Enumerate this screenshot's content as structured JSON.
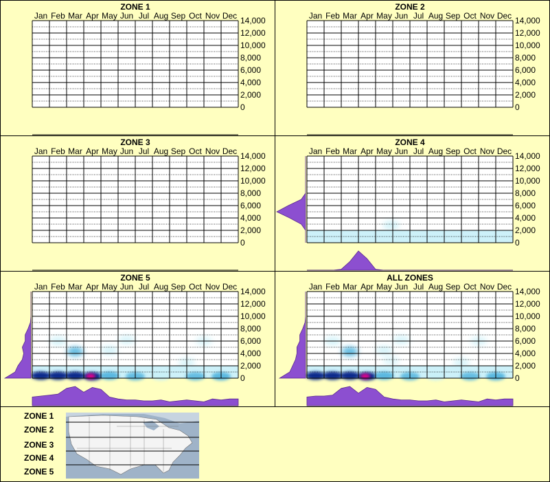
{
  "months": [
    "Jan",
    "Feb",
    "Mar",
    "Apr",
    "May",
    "Jun",
    "Jul",
    "Aug",
    "Sep",
    "Oct",
    "Nov",
    "Dec"
  ],
  "y_ticks": [
    "14,000",
    "12,000",
    "10,000",
    "8,000",
    "6,000",
    "4,000",
    "2,000",
    "0"
  ],
  "colors": {
    "background": "#ffffc0",
    "profile_fill": "#8c4fd0",
    "heat_light": "#c8f0f8",
    "heat_mid": "#5ab8e0",
    "heat_dark": "#0a2a8c",
    "hotspot": "#e0008c"
  },
  "chart_data": [
    {
      "type": "heatmap",
      "title": "ZONE 1",
      "xlabel": "",
      "ylabel": "",
      "ylim": [
        0,
        14000
      ],
      "grid": true,
      "cells": [],
      "month_profile": [],
      "elevation_profile": []
    },
    {
      "type": "heatmap",
      "title": "ZONE 2",
      "xlabel": "",
      "ylabel": "",
      "ylim": [
        0,
        14000
      ],
      "grid": true,
      "cells": [],
      "month_profile": [],
      "elevation_profile": []
    },
    {
      "type": "heatmap",
      "title": "ZONE 3",
      "xlabel": "",
      "ylabel": "",
      "ylim": [
        0,
        14000
      ],
      "grid": true,
      "cells": [],
      "month_profile": [],
      "elevation_profile": []
    },
    {
      "type": "heatmap",
      "title": "ZONE 4",
      "xlabel": "",
      "ylabel": "",
      "ylim": [
        0,
        14000
      ],
      "grid": true,
      "cells": [
        {
          "month": 5.4,
          "elevation": 2800,
          "intensity": 0.35
        }
      ],
      "month_profile": [
        0,
        0,
        0,
        0,
        0.05,
        0.45,
        1.0,
        0.6,
        0.05,
        0,
        0,
        0,
        0,
        0,
        0,
        0,
        0,
        0,
        0,
        0,
        0,
        0,
        0,
        0,
        0
      ],
      "elevation_profile": [
        0,
        0,
        0,
        0.15,
        0.55,
        1.0,
        0.6,
        0.15,
        0,
        0,
        0,
        0,
        0,
        0,
        0
      ]
    },
    {
      "type": "heatmap",
      "title": "ZONE 5",
      "xlabel": "",
      "ylabel": "",
      "ylim": [
        0,
        14000
      ],
      "grid": true,
      "cells": [
        {
          "month": 1.0,
          "elevation": 400,
          "intensity": 0.95
        },
        {
          "month": 2.0,
          "elevation": 400,
          "intensity": 0.85
        },
        {
          "month": 3.0,
          "elevation": 400,
          "intensity": 0.9
        },
        {
          "month": 4.0,
          "elevation": 300,
          "intensity": 1.0
        },
        {
          "month": 5.0,
          "elevation": 400,
          "intensity": 0.7
        },
        {
          "month": 6.5,
          "elevation": 300,
          "intensity": 0.5
        },
        {
          "month": 8.0,
          "elevation": 300,
          "intensity": 0.45
        },
        {
          "month": 10.0,
          "elevation": 300,
          "intensity": 0.5
        },
        {
          "month": 11.5,
          "elevation": 300,
          "intensity": 0.6
        },
        {
          "month": 3.0,
          "elevation": 4300,
          "intensity": 0.55
        },
        {
          "month": 2.0,
          "elevation": 6000,
          "intensity": 0.3
        },
        {
          "month": 5.0,
          "elevation": 4500,
          "intensity": 0.3
        },
        {
          "month": 6.0,
          "elevation": 6200,
          "intensity": 0.25
        },
        {
          "month": 9.5,
          "elevation": 2500,
          "intensity": 0.25
        },
        {
          "month": 10.5,
          "elevation": 6000,
          "intensity": 0.2
        }
      ],
      "hotspot": {
        "month": 3.9,
        "elevation": 300
      },
      "month_profile": [
        0.45,
        0.5,
        0.55,
        0.6,
        0.9,
        1.0,
        0.7,
        0.95,
        0.85,
        0.45,
        0.35,
        0.3,
        0.3,
        0.25,
        0.25,
        0.3,
        0.2,
        0.25,
        0.3,
        0.25,
        0.2,
        0.35,
        0.3,
        0.35,
        0.35
      ],
      "elevation_profile": [
        0.9,
        0.55,
        0.45,
        0.3,
        0.25,
        0.3,
        0.2,
        0.2,
        0.1,
        0.02,
        0,
        0,
        0,
        0,
        0
      ]
    },
    {
      "type": "heatmap",
      "title": "ALL ZONES",
      "xlabel": "",
      "ylabel": "",
      "ylim": [
        0,
        14000
      ],
      "grid": true,
      "cells": [
        {
          "month": 1.0,
          "elevation": 400,
          "intensity": 0.95
        },
        {
          "month": 2.0,
          "elevation": 400,
          "intensity": 0.85
        },
        {
          "month": 3.0,
          "elevation": 400,
          "intensity": 0.9
        },
        {
          "month": 4.0,
          "elevation": 300,
          "intensity": 1.0
        },
        {
          "month": 5.0,
          "elevation": 400,
          "intensity": 0.7
        },
        {
          "month": 6.5,
          "elevation": 300,
          "intensity": 0.5
        },
        {
          "month": 8.0,
          "elevation": 300,
          "intensity": 0.45
        },
        {
          "month": 10.0,
          "elevation": 300,
          "intensity": 0.5
        },
        {
          "month": 11.5,
          "elevation": 300,
          "intensity": 0.6
        },
        {
          "month": 3.0,
          "elevation": 4300,
          "intensity": 0.55
        },
        {
          "month": 2.0,
          "elevation": 6000,
          "intensity": 0.3
        },
        {
          "month": 5.0,
          "elevation": 4500,
          "intensity": 0.3
        },
        {
          "month": 6.0,
          "elevation": 6200,
          "intensity": 0.25
        },
        {
          "month": 9.5,
          "elevation": 2500,
          "intensity": 0.25
        },
        {
          "month": 10.5,
          "elevation": 6000,
          "intensity": 0.2
        },
        {
          "month": 5.4,
          "elevation": 2800,
          "intensity": 0.15
        }
      ],
      "hotspot": {
        "month": 3.9,
        "elevation": 300
      },
      "month_profile": [
        0.45,
        0.5,
        0.5,
        0.55,
        0.9,
        1.0,
        0.65,
        0.95,
        0.85,
        0.45,
        0.35,
        0.3,
        0.3,
        0.25,
        0.25,
        0.3,
        0.2,
        0.25,
        0.3,
        0.25,
        0.2,
        0.35,
        0.3,
        0.35,
        0.35
      ],
      "elevation_profile": [
        0.9,
        0.55,
        0.45,
        0.35,
        0.3,
        0.3,
        0.2,
        0.2,
        0.1,
        0.02,
        0,
        0,
        0,
        0,
        0
      ]
    }
  ],
  "legend": {
    "zones": [
      "ZONE 1",
      "ZONE 2",
      "ZONE 3",
      "ZONE 4",
      "ZONE 5"
    ],
    "map_colors": {
      "water": "#9fb3c8",
      "land": "#f4f4f4",
      "border": "#707070"
    }
  }
}
